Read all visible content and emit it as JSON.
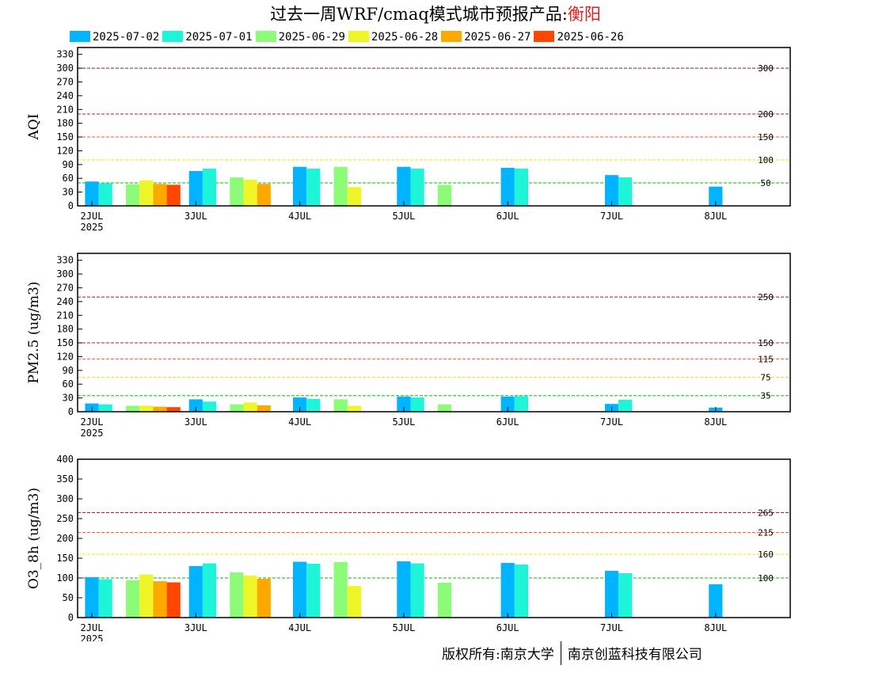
{
  "title": {
    "prefix": "过去一周WRF/cmaq模式城市预报产品:",
    "city": "衡阳"
  },
  "legend": [
    {
      "label": "2025-07-02",
      "color": "#00b4ff"
    },
    {
      "label": "2025-07-01",
      "color": "#1ef5d8"
    },
    {
      "label": "2025-06-29",
      "color": "#8cfc78"
    },
    {
      "label": "2025-06-28",
      "color": "#f0f528"
    },
    {
      "label": "2025-06-27",
      "color": "#ffa800"
    },
    {
      "label": "2025-06-26",
      "color": "#ff4600"
    }
  ],
  "footer": {
    "left": "版权所有:南京大学",
    "right": "南京创蓝科技有限公司"
  },
  "chart_data": [
    {
      "type": "bar",
      "ylabel": "AQI",
      "ylim": [
        0,
        345
      ],
      "yticks": [
        0,
        30,
        60,
        90,
        120,
        150,
        180,
        210,
        240,
        270,
        300,
        330
      ],
      "x_ticks": [
        "2JUL",
        "3JUL",
        "4JUL",
        "5JUL",
        "6JUL",
        "7JUL",
        "8JUL"
      ],
      "x_sub": "2025",
      "thresholds": [
        {
          "value": 300,
          "label": "300",
          "color": "#8b1a4a"
        },
        {
          "value": 200,
          "label": "200",
          "color": "#c01818"
        },
        {
          "value": 150,
          "label": "150",
          "color": "#ff5a2a"
        },
        {
          "value": 100,
          "label": "100",
          "color": "#ffe000"
        },
        {
          "value": 50,
          "label": "50",
          "color": "#00c000"
        }
      ],
      "bars": [
        {
          "day": 0,
          "series": "2025-07-02",
          "value": 53
        },
        {
          "day": 0,
          "series": "2025-07-01",
          "value": 49
        },
        {
          "day": 0,
          "series": "2025-06-29",
          "value": 47
        },
        {
          "day": 0,
          "series": "2025-06-28",
          "value": 56
        },
        {
          "day": 0,
          "series": "2025-06-27",
          "value": 48
        },
        {
          "day": 0,
          "series": "2025-06-26",
          "value": 46
        },
        {
          "day": 1,
          "series": "2025-07-02",
          "value": 76
        },
        {
          "day": 1,
          "series": "2025-07-01",
          "value": 81
        },
        {
          "day": 1,
          "series": "2025-06-29",
          "value": 62
        },
        {
          "day": 1,
          "series": "2025-06-28",
          "value": 57
        },
        {
          "day": 1,
          "series": "2025-06-27",
          "value": 48
        },
        {
          "day": 2,
          "series": "2025-07-02",
          "value": 85
        },
        {
          "day": 2,
          "series": "2025-07-01",
          "value": 81
        },
        {
          "day": 2,
          "series": "2025-06-29",
          "value": 85
        },
        {
          "day": 2,
          "series": "2025-06-28",
          "value": 41
        },
        {
          "day": 3,
          "series": "2025-07-02",
          "value": 85
        },
        {
          "day": 3,
          "series": "2025-07-01",
          "value": 81
        },
        {
          "day": 3,
          "series": "2025-06-29",
          "value": 46
        },
        {
          "day": 4,
          "series": "2025-07-02",
          "value": 83
        },
        {
          "day": 4,
          "series": "2025-07-01",
          "value": 81
        },
        {
          "day": 5,
          "series": "2025-07-02",
          "value": 67
        },
        {
          "day": 5,
          "series": "2025-07-01",
          "value": 62
        },
        {
          "day": 6,
          "series": "2025-07-02",
          "value": 42
        }
      ]
    },
    {
      "type": "bar",
      "ylabel": "PM2.5 (ug/m3)",
      "ylim": [
        0,
        345
      ],
      "yticks": [
        0,
        30,
        60,
        90,
        120,
        150,
        180,
        210,
        240,
        270,
        300,
        330
      ],
      "x_ticks": [
        "2JUL",
        "3JUL",
        "4JUL",
        "5JUL",
        "6JUL",
        "7JUL",
        "8JUL"
      ],
      "x_sub": "2025",
      "thresholds": [
        {
          "value": 250,
          "label": "250",
          "color": "#8b1a4a"
        },
        {
          "value": 150,
          "label": "150",
          "color": "#c01818"
        },
        {
          "value": 115,
          "label": "115",
          "color": "#ff5a2a"
        },
        {
          "value": 75,
          "label": "75",
          "color": "#ffe000"
        },
        {
          "value": 35,
          "label": "35",
          "color": "#00c000"
        }
      ],
      "bars": [
        {
          "day": 0,
          "series": "2025-07-02",
          "value": 18
        },
        {
          "day": 0,
          "series": "2025-07-01",
          "value": 16
        },
        {
          "day": 0,
          "series": "2025-06-29",
          "value": 13
        },
        {
          "day": 0,
          "series": "2025-06-28",
          "value": 13
        },
        {
          "day": 0,
          "series": "2025-06-27",
          "value": 11
        },
        {
          "day": 0,
          "series": "2025-06-26",
          "value": 10
        },
        {
          "day": 1,
          "series": "2025-07-02",
          "value": 27
        },
        {
          "day": 1,
          "series": "2025-07-01",
          "value": 22
        },
        {
          "day": 1,
          "series": "2025-06-29",
          "value": 16
        },
        {
          "day": 1,
          "series": "2025-06-28",
          "value": 20
        },
        {
          "day": 1,
          "series": "2025-06-27",
          "value": 14
        },
        {
          "day": 2,
          "series": "2025-07-02",
          "value": 31
        },
        {
          "day": 2,
          "series": "2025-07-01",
          "value": 28
        },
        {
          "day": 2,
          "series": "2025-06-29",
          "value": 27
        },
        {
          "day": 2,
          "series": "2025-06-28",
          "value": 13
        },
        {
          "day": 3,
          "series": "2025-07-02",
          "value": 33
        },
        {
          "day": 3,
          "series": "2025-07-01",
          "value": 31
        },
        {
          "day": 3,
          "series": "2025-06-29",
          "value": 16
        },
        {
          "day": 4,
          "series": "2025-07-02",
          "value": 33
        },
        {
          "day": 4,
          "series": "2025-07-01",
          "value": 34
        },
        {
          "day": 5,
          "series": "2025-07-02",
          "value": 17
        },
        {
          "day": 5,
          "series": "2025-07-01",
          "value": 26
        },
        {
          "day": 6,
          "series": "2025-07-02",
          "value": 9
        }
      ]
    },
    {
      "type": "bar",
      "ylabel": "O3_8h (ug/m3)",
      "ylim": [
        0,
        400
      ],
      "yticks": [
        0,
        50,
        100,
        150,
        200,
        250,
        300,
        350,
        400
      ],
      "x_ticks": [
        "2JUL",
        "3JUL",
        "4JUL",
        "5JUL",
        "6JUL",
        "7JUL",
        "8JUL"
      ],
      "x_sub": "2025",
      "thresholds": [
        {
          "value": 265,
          "label": "265",
          "color": "#c01818"
        },
        {
          "value": 215,
          "label": "215",
          "color": "#ff5a2a"
        },
        {
          "value": 160,
          "label": "160",
          "color": "#ffe000"
        },
        {
          "value": 100,
          "label": "100",
          "color": "#00c000"
        }
      ],
      "bars": [
        {
          "day": 0,
          "series": "2025-07-02",
          "value": 102
        },
        {
          "day": 0,
          "series": "2025-07-01",
          "value": 97
        },
        {
          "day": 0,
          "series": "2025-06-29",
          "value": 94
        },
        {
          "day": 0,
          "series": "2025-06-28",
          "value": 109
        },
        {
          "day": 0,
          "series": "2025-06-27",
          "value": 92
        },
        {
          "day": 0,
          "series": "2025-06-26",
          "value": 89
        },
        {
          "day": 1,
          "series": "2025-07-02",
          "value": 130
        },
        {
          "day": 1,
          "series": "2025-07-01",
          "value": 137
        },
        {
          "day": 1,
          "series": "2025-06-29",
          "value": 114
        },
        {
          "day": 1,
          "series": "2025-06-28",
          "value": 106
        },
        {
          "day": 1,
          "series": "2025-06-27",
          "value": 98
        },
        {
          "day": 2,
          "series": "2025-07-02",
          "value": 141
        },
        {
          "day": 2,
          "series": "2025-07-01",
          "value": 136
        },
        {
          "day": 2,
          "series": "2025-06-29",
          "value": 140
        },
        {
          "day": 2,
          "series": "2025-06-28",
          "value": 80
        },
        {
          "day": 3,
          "series": "2025-07-02",
          "value": 142
        },
        {
          "day": 3,
          "series": "2025-07-01",
          "value": 137
        },
        {
          "day": 3,
          "series": "2025-06-29",
          "value": 88
        },
        {
          "day": 4,
          "series": "2025-07-02",
          "value": 138
        },
        {
          "day": 4,
          "series": "2025-07-01",
          "value": 134
        },
        {
          "day": 5,
          "series": "2025-07-02",
          "value": 118
        },
        {
          "day": 5,
          "series": "2025-07-01",
          "value": 112
        },
        {
          "day": 6,
          "series": "2025-07-02",
          "value": 84
        }
      ]
    }
  ]
}
